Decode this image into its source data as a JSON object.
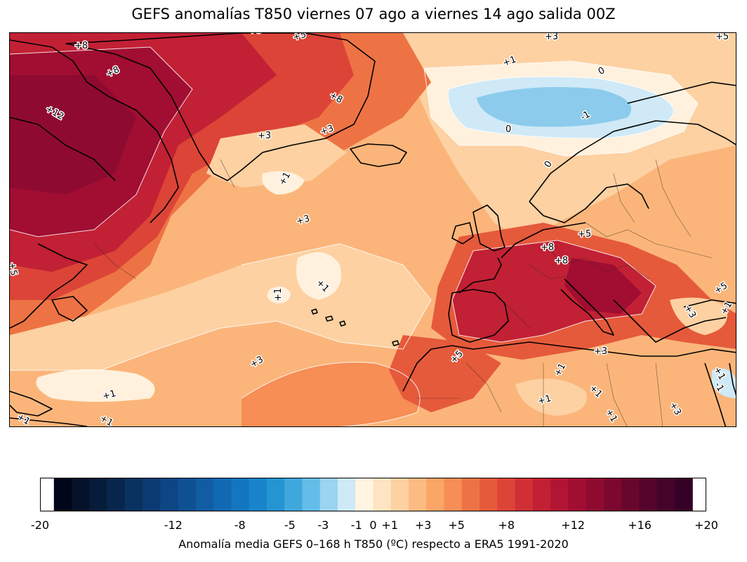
{
  "title": "GEFS anomalías T850 viernes 07 ago a viernes 14 ago salida 00Z",
  "colorbar": {
    "label": "Anomalía media GEFS 0–168 h T850 (ºC) respecto a ERA5 1991-2020",
    "min": -20,
    "max": 20,
    "ticks": [
      {
        "value": -20,
        "label": "-20"
      },
      {
        "value": -12,
        "label": "-12"
      },
      {
        "value": -8,
        "label": "-8"
      },
      {
        "value": -5,
        "label": "-5"
      },
      {
        "value": -3,
        "label": "-3"
      },
      {
        "value": -1,
        "label": "-1"
      },
      {
        "value": 0,
        "label": "0"
      },
      {
        "value": 1,
        "label": "+1"
      },
      {
        "value": 3,
        "label": "+3"
      },
      {
        "value": 5,
        "label": "+5"
      },
      {
        "value": 8,
        "label": "+8"
      },
      {
        "value": 12,
        "label": "+12"
      },
      {
        "value": 16,
        "label": "+16"
      },
      {
        "value": 20,
        "label": "+20"
      }
    ],
    "colors": [
      "#02061a",
      "#041129",
      "#061c3a",
      "#08264d",
      "#0a3160",
      "#0c3b73",
      "#0d4683",
      "#0e5192",
      "#105da3",
      "#1169b3",
      "#1376c0",
      "#1984c9",
      "#2494d3",
      "#40a7dd",
      "#64bde8",
      "#9ad4f1",
      "#cfe9f7",
      "#fff5e1",
      "#fee4c3",
      "#fdd1a2",
      "#fcbb82",
      "#fba567",
      "#f68e55",
      "#ee7344",
      "#e55a3b",
      "#dc4437",
      "#d03035",
      "#c22034",
      "#b21533",
      "#a10e32",
      "#8f0a31",
      "#7c082f",
      "#69062d",
      "#56042b",
      "#450329",
      "#360127"
    ]
  },
  "contour_labels": [
    {
      "text": "+8"
    },
    {
      "text": "+8"
    },
    {
      "text": "+8"
    },
    {
      "text": "+12"
    },
    {
      "text": "+5"
    },
    {
      "text": "+3"
    },
    {
      "text": "+3"
    },
    {
      "text": "+3"
    },
    {
      "text": "+1"
    },
    {
      "text": "0"
    },
    {
      "text": "-1"
    },
    {
      "text": "0"
    },
    {
      "text": "0"
    },
    {
      "text": "+1"
    },
    {
      "text": "+3"
    },
    {
      "text": "+5"
    },
    {
      "text": "+5"
    },
    {
      "text": "+8"
    },
    {
      "text": "+8"
    },
    {
      "text": "+1"
    },
    {
      "text": "+1"
    },
    {
      "text": "+3"
    },
    {
      "text": "+5"
    },
    {
      "text": "+3"
    },
    {
      "text": "+5"
    },
    {
      "text": "+3"
    },
    {
      "text": "+1"
    },
    {
      "text": "+1"
    },
    {
      "text": "+1"
    },
    {
      "text": "+1"
    },
    {
      "text": "+1"
    },
    {
      "text": "+3"
    },
    {
      "text": "+1"
    },
    {
      "text": "+1"
    },
    {
      "text": "+1"
    },
    {
      "text": "-1"
    },
    {
      "text": "+5"
    },
    {
      "text": "+1"
    },
    {
      "text": "+3"
    }
  ]
}
